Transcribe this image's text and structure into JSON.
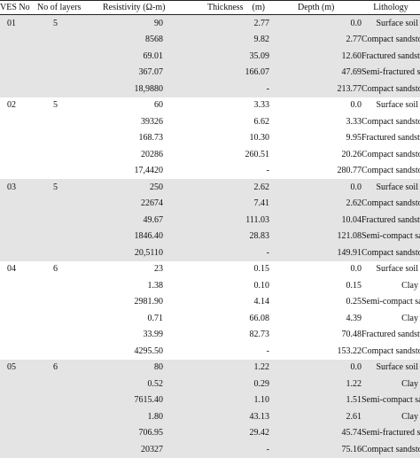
{
  "table": {
    "headers": {
      "ves": "VES No.",
      "layers": "No of layers",
      "resistivity": "Resistivity (Ω-m)",
      "thickness": "Thickness    (m)",
      "depth": "Depth (m)",
      "lithology": "Lithology"
    },
    "groups": [
      {
        "ves": "01",
        "layers": "5",
        "shaded": true,
        "rows": [
          {
            "res": "90",
            "thick": "2.77",
            "depth": "0.0",
            "lith": "Surface soil"
          },
          {
            "res": "8568",
            "thick": "9.82",
            "depth": "2.77",
            "lith": "Compact sandstone"
          },
          {
            "res": "69.01",
            "thick": "35.09",
            "depth": "12.60",
            "lith": "Fractured sandstone"
          },
          {
            "res": "367.07",
            "thick": "166.07",
            "depth": "47.69",
            "lith": "Semi-fractured sandstone"
          },
          {
            "res": "18,9880",
            "thick": "-",
            "depth": "213.77",
            "lith": "Compact sandstone"
          }
        ]
      },
      {
        "ves": "02",
        "layers": "5",
        "shaded": false,
        "rows": [
          {
            "res": "60",
            "thick": "3.33",
            "depth": "0.0",
            "lith": "Surface soil"
          },
          {
            "res": "39326",
            "thick": "6.62",
            "depth": "3.33",
            "lith": "Compact sandstone"
          },
          {
            "res": "168.73",
            "thick": "10.30",
            "depth": "9.95",
            "lith": "Fractured sandstone"
          },
          {
            "res": "20286",
            "thick": "260.51",
            "depth": "20.26",
            "lith": "Compact sandstone"
          },
          {
            "res": "17,4420",
            "thick": "-",
            "depth": "280.77",
            "lith": "Compact sandstone"
          }
        ]
      },
      {
        "ves": "03",
        "layers": "5",
        "shaded": true,
        "rows": [
          {
            "res": "250",
            "thick": "2.62",
            "depth": "0.0",
            "lith": "Surface soil"
          },
          {
            "res": "22674",
            "thick": "7.41",
            "depth": "2.62",
            "lith": "Compact sandstone"
          },
          {
            "res": "49.67",
            "thick": "111.03",
            "depth": "10.04",
            "lith": "Fractured sandstone"
          },
          {
            "res": "1846.40",
            "thick": "28.83",
            "depth": "121.08",
            "lith": "Semi-compact sandstone"
          },
          {
            "res": "20,5110",
            "thick": "-",
            "depth": "149.91",
            "lith": "Compact sandstone"
          }
        ]
      },
      {
        "ves": "04",
        "layers": "6",
        "shaded": false,
        "rows": [
          {
            "res": "23",
            "thick": "0.15",
            "depth": "0.0",
            "lith": "Surface soil"
          },
          {
            "res": "1.38",
            "thick": "0.10",
            "depth": "0.15",
            "lith": "Clay"
          },
          {
            "res": "2981.90",
            "thick": "4.14",
            "depth": "0.25",
            "lith": "Semi-compact sandstone"
          },
          {
            "res": "0.71",
            "thick": "66.08",
            "depth": "4.39",
            "lith": "Clay"
          },
          {
            "res": "33.99",
            "thick": "82.73",
            "depth": "70.48",
            "lith": "Fractured sandstone"
          },
          {
            "res": "4295.50",
            "thick": "-",
            "depth": "153.22",
            "lith": "Compact sandstone"
          }
        ]
      },
      {
        "ves": "05",
        "layers": "6",
        "shaded": true,
        "rows": [
          {
            "res": "80",
            "thick": "1.22",
            "depth": "0.0",
            "lith": "Surface soil"
          },
          {
            "res": "0.52",
            "thick": "0.29",
            "depth": "1.22",
            "lith": "Clay"
          },
          {
            "res": "7615.40",
            "thick": "1.10",
            "depth": "1.51",
            "lith": "Semi-compact sandstone"
          },
          {
            "res": "1.80",
            "thick": "43.13",
            "depth": "2.61",
            "lith": "Clay"
          },
          {
            "res": "706.95",
            "thick": "29.42",
            "depth": "45.74",
            "lith": "Semi-fractured sandstone"
          },
          {
            "res": "20327",
            "thick": "-",
            "depth": "75.16",
            "lith": "Compact sandstone"
          }
        ]
      }
    ]
  }
}
